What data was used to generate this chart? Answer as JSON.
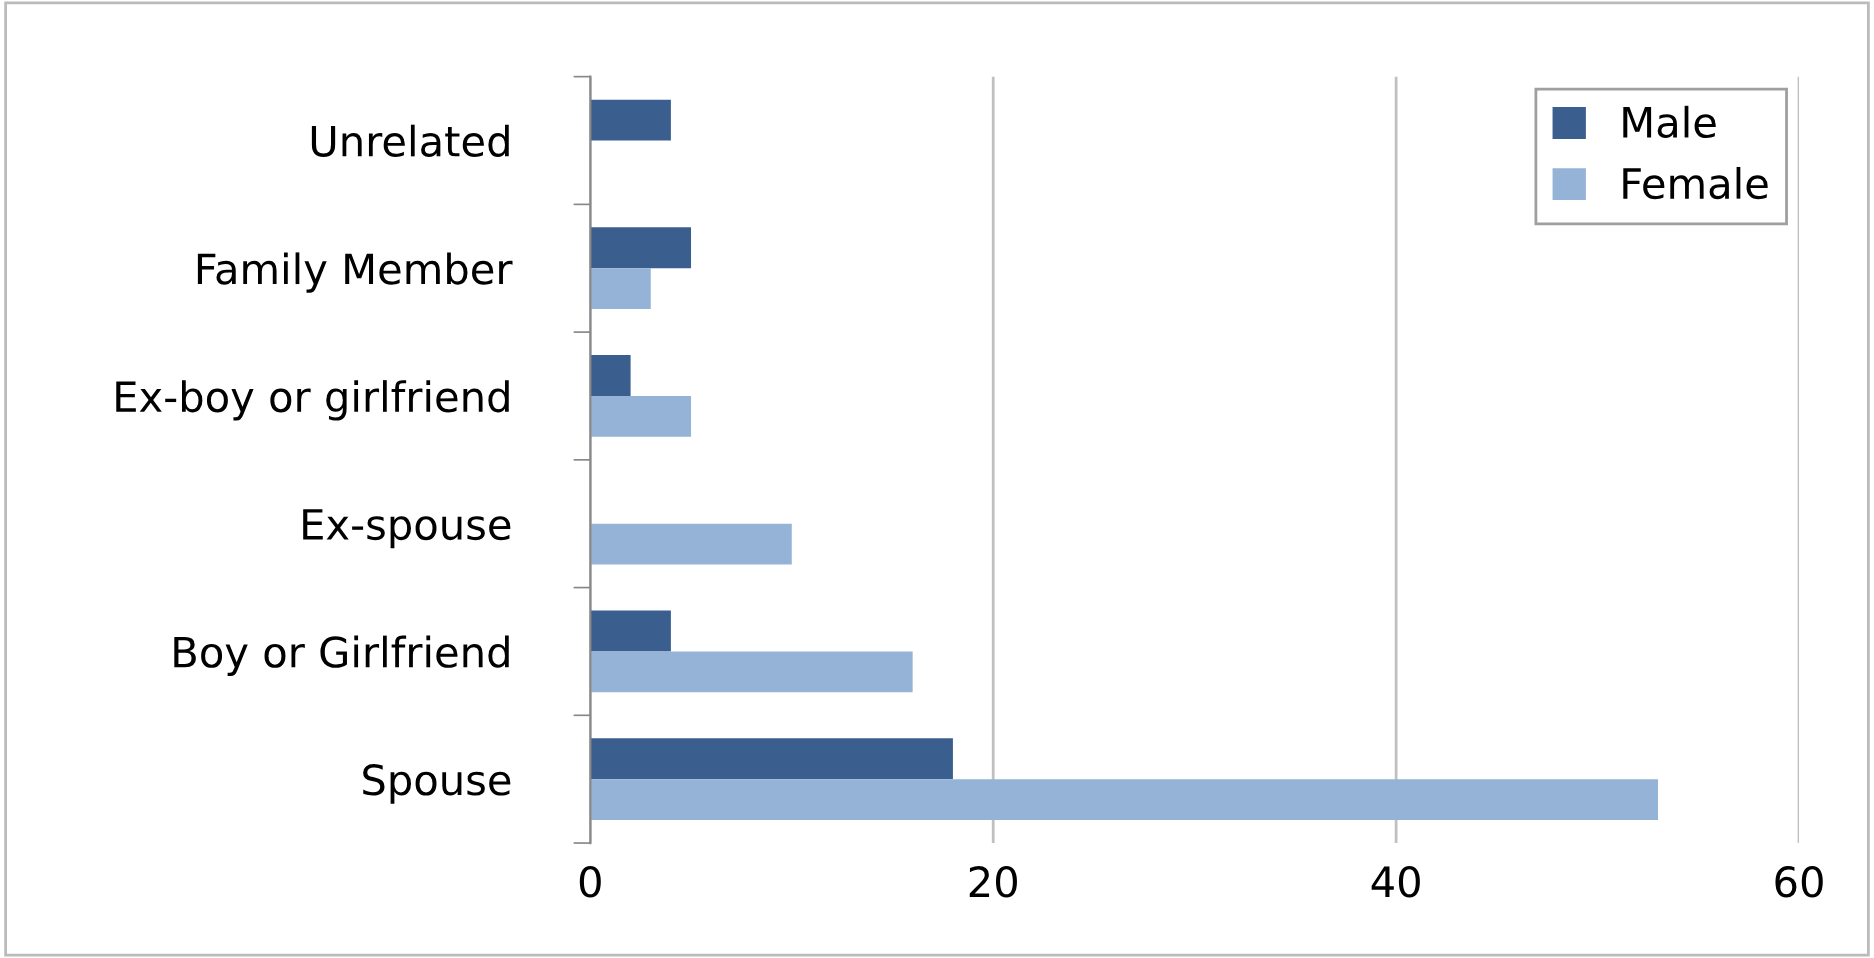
{
  "chart_data": {
    "type": "bar",
    "orientation": "horizontal",
    "categories": [
      "Unrelated",
      "Family Member",
      "Ex-boy or girlfriend",
      "Ex-spouse",
      "Boy or Girlfriend",
      "Spouse"
    ],
    "series": [
      {
        "name": "Male",
        "color": "#3a5f8f",
        "values": [
          4,
          5,
          2,
          0,
          4,
          18
        ]
      },
      {
        "name": "Female",
        "color": "#95b3d7",
        "values": [
          0,
          3,
          5,
          10,
          16,
          53
        ]
      }
    ],
    "xlim": [
      0,
      60
    ],
    "xticks": [
      0,
      20,
      40,
      60
    ],
    "grid": "x",
    "legend": "top right"
  }
}
